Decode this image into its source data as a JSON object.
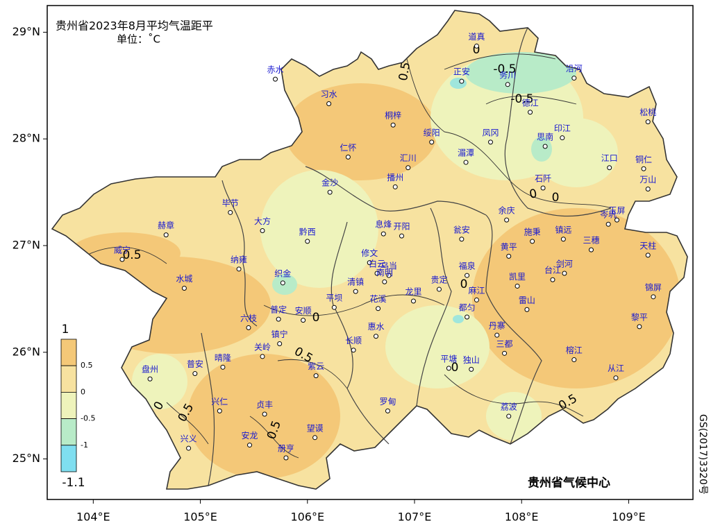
{
  "map": {
    "title": "贵州省2023年8月平均气温距平",
    "unit": "单位：˚C",
    "credit": "贵州省气候中心",
    "approval": "GS(2017)3320号",
    "xlim": [
      103.57,
      109.6
    ],
    "ylim": [
      24.62,
      29.25
    ],
    "xticks": [
      {
        "value": 104,
        "label": "104°E"
      },
      {
        "value": 105,
        "label": "105°E"
      },
      {
        "value": 106,
        "label": "106°E"
      },
      {
        "value": 107,
        "label": "107°E"
      },
      {
        "value": 108,
        "label": "108°E"
      },
      {
        "value": 109,
        "label": "109°E"
      }
    ],
    "yticks": [
      {
        "value": 25,
        "label": "25°N"
      },
      {
        "value": 26,
        "label": "26°N"
      },
      {
        "value": 27,
        "label": "27°N"
      },
      {
        "value": 28,
        "label": "28°N"
      },
      {
        "value": 29,
        "label": "29°N"
      }
    ],
    "legend": {
      "levels": [
        1,
        0.5,
        0,
        -0.5,
        -1,
        -1.1
      ],
      "colors": [
        "#f4c878",
        "#f7e2a0",
        "#eef3bb",
        "#b8ebc8",
        "#7fdef0"
      ]
    },
    "contour_labels": [
      0.5,
      0,
      -0.5,
      -0.5,
      0.5,
      0,
      0,
      0,
      0.5,
      0,
      0,
      0.5,
      0.5,
      0.5,
      0
    ],
    "stations": [
      {
        "name": "道真",
        "lon": 107.58,
        "lat": 28.87
      },
      {
        "name": "赤水",
        "lon": 105.7,
        "lat": 28.56
      },
      {
        "name": "正安",
        "lon": 107.44,
        "lat": 28.54
      },
      {
        "name": "务川",
        "lon": 107.87,
        "lat": 28.51
      },
      {
        "name": "沿河",
        "lon": 108.49,
        "lat": 28.57
      },
      {
        "name": "习水",
        "lon": 106.2,
        "lat": 28.33
      },
      {
        "name": "德江",
        "lon": 108.08,
        "lat": 28.25
      },
      {
        "name": "桐梓",
        "lon": 106.8,
        "lat": 28.13
      },
      {
        "name": "松桃",
        "lon": 109.18,
        "lat": 28.16
      },
      {
        "name": "绥阳",
        "lon": 107.16,
        "lat": 27.97
      },
      {
        "name": "凤冈",
        "lon": 107.71,
        "lat": 27.97
      },
      {
        "name": "思南",
        "lon": 108.22,
        "lat": 27.93
      },
      {
        "name": "印江",
        "lon": 108.38,
        "lat": 28.01
      },
      {
        "name": "仁怀",
        "lon": 106.38,
        "lat": 27.83
      },
      {
        "name": "湄潭",
        "lon": 107.48,
        "lat": 27.78
      },
      {
        "name": "汇川",
        "lon": 106.94,
        "lat": 27.73
      },
      {
        "name": "江口",
        "lon": 108.82,
        "lat": 27.73
      },
      {
        "name": "铜仁",
        "lon": 109.14,
        "lat": 27.72
      },
      {
        "name": "播州",
        "lon": 106.82,
        "lat": 27.55
      },
      {
        "name": "石阡",
        "lon": 108.2,
        "lat": 27.54
      },
      {
        "name": "金沙",
        "lon": 106.21,
        "lat": 27.5
      },
      {
        "name": "万山",
        "lon": 109.18,
        "lat": 27.53
      },
      {
        "name": "毕节",
        "lon": 105.28,
        "lat": 27.31
      },
      {
        "name": "余庆",
        "lon": 107.86,
        "lat": 27.24
      },
      {
        "name": "岑巩",
        "lon": 108.81,
        "lat": 27.2
      },
      {
        "name": "玉屏",
        "lon": 108.89,
        "lat": 27.24
      },
      {
        "name": "大方",
        "lon": 105.58,
        "lat": 27.14
      },
      {
        "name": "息烽",
        "lon": 106.71,
        "lat": 27.11
      },
      {
        "name": "开阳",
        "lon": 106.88,
        "lat": 27.09
      },
      {
        "name": "赫章",
        "lon": 104.68,
        "lat": 27.1
      },
      {
        "name": "黔西",
        "lon": 106.0,
        "lat": 27.04
      },
      {
        "name": "瓮安",
        "lon": 107.44,
        "lat": 27.06
      },
      {
        "name": "施秉",
        "lon": 108.1,
        "lat": 27.04
      },
      {
        "name": "镇远",
        "lon": 108.39,
        "lat": 27.06
      },
      {
        "name": "黄平",
        "lon": 107.88,
        "lat": 26.9
      },
      {
        "name": "三穗",
        "lon": 108.65,
        "lat": 26.96
      },
      {
        "name": "天柱",
        "lon": 109.18,
        "lat": 26.91
      },
      {
        "name": "威宁",
        "lon": 104.27,
        "lat": 26.87
      },
      {
        "name": "修文",
        "lon": 106.58,
        "lat": 26.84
      },
      {
        "name": "纳雍",
        "lon": 105.36,
        "lat": 26.78
      },
      {
        "name": "白云",
        "lon": 106.65,
        "lat": 26.74
      },
      {
        "name": "乌当",
        "lon": 106.76,
        "lat": 26.72
      },
      {
        "name": "南明",
        "lon": 106.72,
        "lat": 26.66
      },
      {
        "name": "福泉",
        "lon": 107.49,
        "lat": 26.72
      },
      {
        "name": "剑河",
        "lon": 108.4,
        "lat": 26.74
      },
      {
        "name": "台江",
        "lon": 108.29,
        "lat": 26.68
      },
      {
        "name": "织金",
        "lon": 105.77,
        "lat": 26.65
      },
      {
        "name": "凯里",
        "lon": 107.96,
        "lat": 26.62
      },
      {
        "name": "水城",
        "lon": 104.85,
        "lat": 26.6
      },
      {
        "name": "清镇",
        "lon": 106.45,
        "lat": 26.57
      },
      {
        "name": "贵定",
        "lon": 107.23,
        "lat": 26.59
      },
      {
        "name": "锦屏",
        "lon": 109.23,
        "lat": 26.52
      },
      {
        "name": "麻江",
        "lon": 107.58,
        "lat": 26.49
      },
      {
        "name": "花溪",
        "lon": 106.66,
        "lat": 26.41
      },
      {
        "name": "龙里",
        "lon": 106.99,
        "lat": 26.48
      },
      {
        "name": "平坝",
        "lon": 106.25,
        "lat": 26.42
      },
      {
        "name": "雷山",
        "lon": 108.05,
        "lat": 26.4
      },
      {
        "name": "安顺",
        "lon": 105.96,
        "lat": 26.3
      },
      {
        "name": "普定",
        "lon": 105.73,
        "lat": 26.31
      },
      {
        "name": "都匀",
        "lon": 107.49,
        "lat": 26.33
      },
      {
        "name": "六枝",
        "lon": 105.45,
        "lat": 26.23
      },
      {
        "name": "丹寨",
        "lon": 107.77,
        "lat": 26.16
      },
      {
        "name": "黎平",
        "lon": 109.1,
        "lat": 26.24
      },
      {
        "name": "惠水",
        "lon": 106.64,
        "lat": 26.15
      },
      {
        "name": "镇宁",
        "lon": 105.74,
        "lat": 26.08
      },
      {
        "name": "关岭",
        "lon": 105.58,
        "lat": 25.96
      },
      {
        "name": "长顺",
        "lon": 106.43,
        "lat": 26.02
      },
      {
        "name": "三都",
        "lon": 107.84,
        "lat": 25.99
      },
      {
        "name": "榕江",
        "lon": 108.49,
        "lat": 25.93
      },
      {
        "name": "平塘",
        "lon": 107.32,
        "lat": 25.85
      },
      {
        "name": "独山",
        "lon": 107.53,
        "lat": 25.84
      },
      {
        "name": "普安",
        "lon": 104.95,
        "lat": 25.8
      },
      {
        "name": "晴隆",
        "lon": 105.21,
        "lat": 25.86
      },
      {
        "name": "紫云",
        "lon": 106.08,
        "lat": 25.78
      },
      {
        "name": "从江",
        "lon": 108.88,
        "lat": 25.76
      },
      {
        "name": "盘州",
        "lon": 104.53,
        "lat": 25.75
      },
      {
        "name": "兴仁",
        "lon": 105.18,
        "lat": 25.45
      },
      {
        "name": "罗甸",
        "lon": 106.75,
        "lat": 25.45
      },
      {
        "name": "贞丰",
        "lon": 105.6,
        "lat": 25.42
      },
      {
        "name": "荔波",
        "lon": 107.88,
        "lat": 25.4
      },
      {
        "name": "望谟",
        "lon": 106.07,
        "lat": 25.2
      },
      {
        "name": "兴义",
        "lon": 104.89,
        "lat": 25.1
      },
      {
        "name": "安龙",
        "lon": 105.46,
        "lat": 25.13
      },
      {
        "name": "册亨",
        "lon": 105.8,
        "lat": 25.01
      }
    ]
  }
}
